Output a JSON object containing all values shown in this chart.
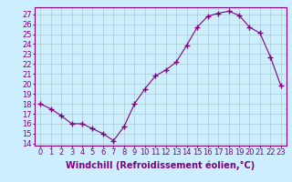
{
  "x": [
    0,
    1,
    2,
    3,
    4,
    5,
    6,
    7,
    8,
    9,
    10,
    11,
    12,
    13,
    14,
    15,
    16,
    17,
    18,
    19,
    20,
    21,
    22,
    23
  ],
  "y": [
    18,
    17.5,
    16.8,
    16,
    16,
    15.5,
    15,
    14.3,
    15.7,
    18,
    19.5,
    20.8,
    21.4,
    22.2,
    23.9,
    25.7,
    26.8,
    27.1,
    27.3,
    26.9,
    25.7,
    25.1,
    22.7,
    19.8
  ],
  "line_color": "#800080",
  "marker": "D",
  "marker_size": 2.5,
  "bg_color": "#cceeff",
  "grid_color": "#aacccc",
  "xlabel": "Windchill (Refroidissement éolien,°C)",
  "xlabel_fontsize": 7,
  "tick_fontsize": 6,
  "ylim": [
    13.8,
    27.7
  ],
  "xlim": [
    -0.5,
    23.5
  ],
  "yticks": [
    14,
    15,
    16,
    17,
    18,
    19,
    20,
    21,
    22,
    23,
    24,
    25,
    26,
    27
  ],
  "xticks": [
    0,
    1,
    2,
    3,
    4,
    5,
    6,
    7,
    8,
    9,
    10,
    11,
    12,
    13,
    14,
    15,
    16,
    17,
    18,
    19,
    20,
    21,
    22,
    23
  ]
}
